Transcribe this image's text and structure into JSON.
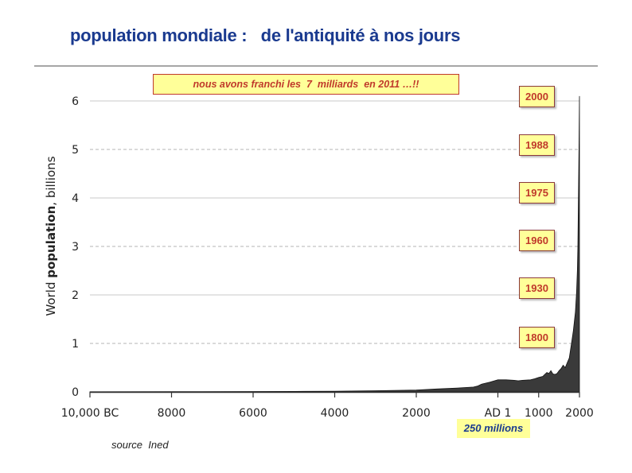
{
  "page": {
    "title": "population mondiale :   de l'antiquité à nos jours",
    "banner": "nous avons franchi les  7  milliards  en 2011 …!!",
    "source": "source  Ined",
    "callout": "250 millions"
  },
  "badges": [
    "2000",
    "1988",
    "1975",
    "1960",
    "1930",
    "1800"
  ],
  "colors": {
    "title": "#1a3a8f",
    "banner_text": "#c0392b",
    "badge_bg": "#ffff99",
    "area_fill": "#3a3a3a",
    "grid_solid": "#c8c8c8",
    "grid_dashed": "#b4b4b4"
  },
  "chart_data": {
    "type": "area",
    "ylabel_prefix": "World ",
    "ylabel_bold": "population",
    "ylabel_suffix": ", billions",
    "ylim": [
      0,
      6
    ],
    "xlim": [
      -10000,
      2000
    ],
    "y_ticks": [
      0,
      1,
      2,
      3,
      4,
      5,
      6
    ],
    "x_ticks": [
      {
        "value": -10000,
        "label": "10,000 BC"
      },
      {
        "value": -8000,
        "label": "8000"
      },
      {
        "value": -6000,
        "label": "6000"
      },
      {
        "value": -4000,
        "label": "4000"
      },
      {
        "value": -2000,
        "label": "2000"
      },
      {
        "value": 0,
        "label": "AD 1"
      },
      {
        "value": 1000,
        "label": "1000"
      },
      {
        "value": 2000,
        "label": "2000"
      }
    ],
    "series": [
      {
        "name": "World population",
        "x": [
          -10000,
          -8000,
          -6000,
          -5000,
          -4000,
          -3000,
          -2000,
          -1500,
          -1000,
          -800,
          -600,
          -500,
          -400,
          -200,
          0,
          200,
          400,
          500,
          600,
          800,
          900,
          1000,
          1100,
          1150,
          1200,
          1250,
          1300,
          1350,
          1400,
          1450,
          1500,
          1550,
          1600,
          1650,
          1700,
          1750,
          1800,
          1850,
          1900,
          1930,
          1950,
          1960,
          1975,
          1988,
          2000
        ],
        "values": [
          0.004,
          0.005,
          0.008,
          0.01,
          0.015,
          0.025,
          0.04,
          0.06,
          0.08,
          0.09,
          0.1,
          0.12,
          0.16,
          0.2,
          0.25,
          0.25,
          0.24,
          0.23,
          0.24,
          0.25,
          0.27,
          0.3,
          0.32,
          0.36,
          0.4,
          0.38,
          0.44,
          0.37,
          0.36,
          0.38,
          0.44,
          0.48,
          0.55,
          0.5,
          0.6,
          0.7,
          0.98,
          1.26,
          1.65,
          2.07,
          2.52,
          3.0,
          4.0,
          5.0,
          6.1
        ]
      }
    ]
  }
}
